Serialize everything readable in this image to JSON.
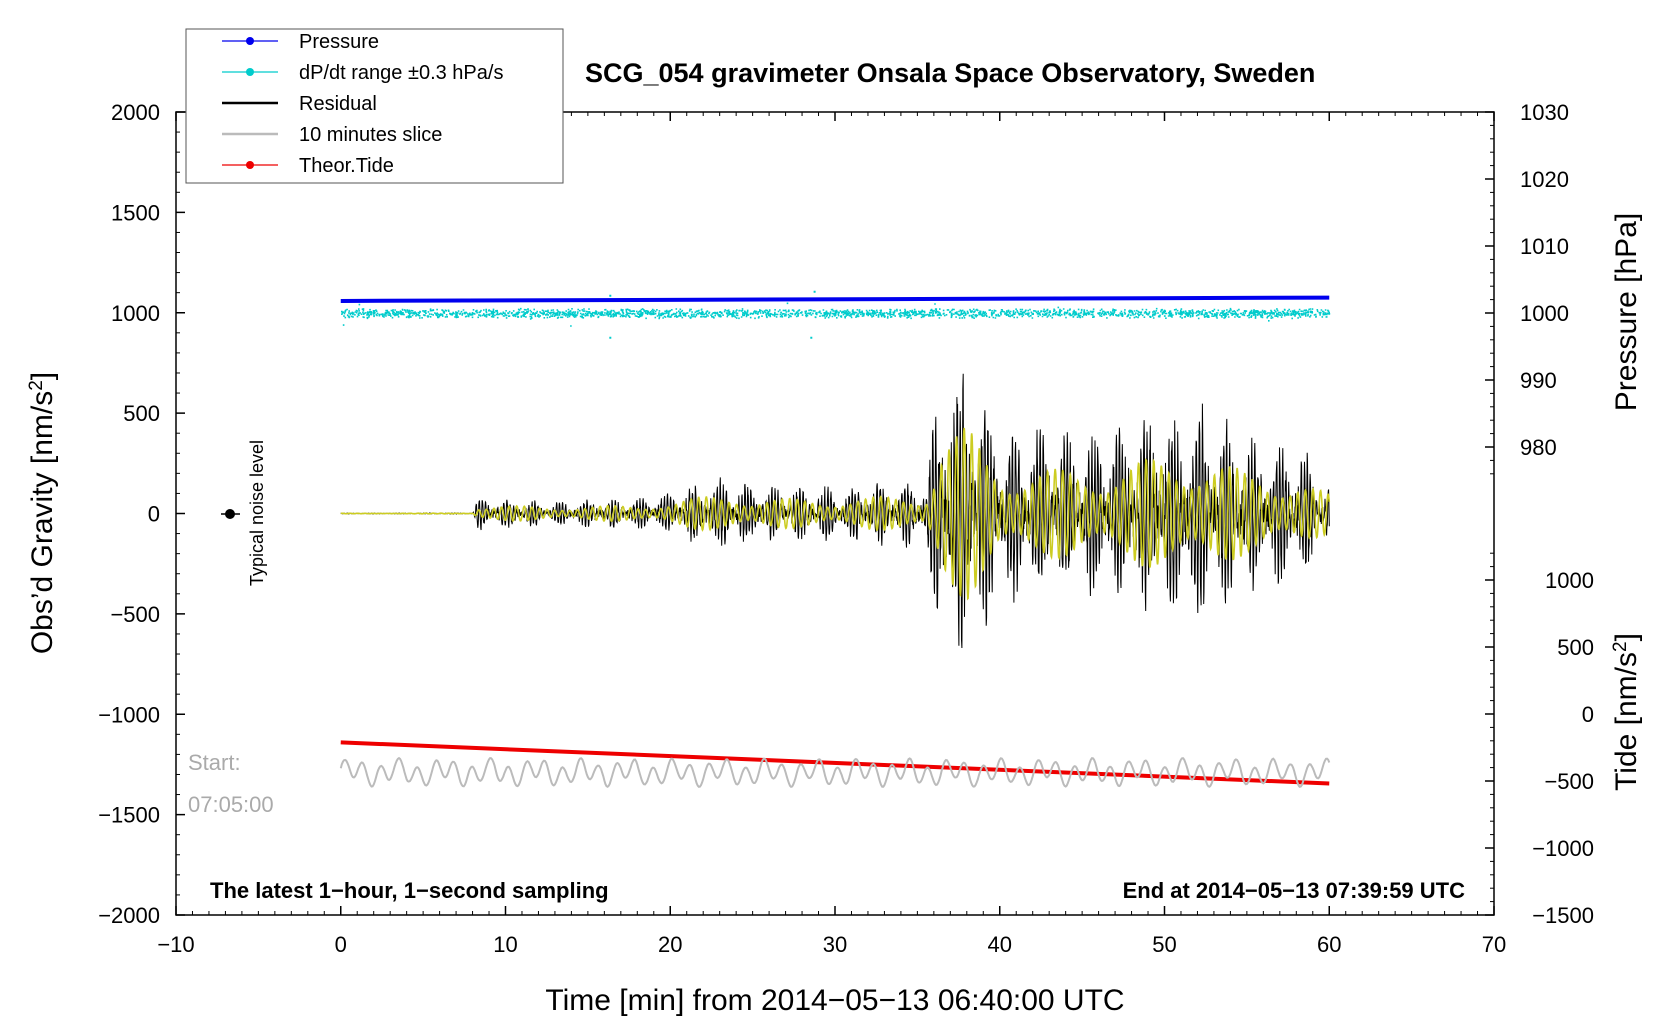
{
  "chart_data": {
    "type": "line",
    "title": "SCG_054 gravimeter Onsala Space Observatory, Sweden",
    "xlabel": "Time [min] from 2014−05−13 06:40:00 UTC",
    "ylabel": "Obs’d Gravity [nm/s²]",
    "ylabel_pressure": "Pressure [hPa]",
    "ylabel_tide": "Tide [nm/s²]",
    "xlim": [
      -10,
      70
    ],
    "ylim": [
      -2000,
      2000
    ],
    "pressure_lim": [
      970,
      1030
    ],
    "tide_lim": [
      -1500,
      1500
    ],
    "x_ticks": [
      -10,
      0,
      10,
      20,
      30,
      40,
      50,
      60,
      70
    ],
    "x_tick_labels": [
      "−10",
      "0",
      "10",
      "20",
      "30",
      "40",
      "50",
      "60",
      "70"
    ],
    "y_ticks": [
      -2000,
      -1500,
      -1000,
      -500,
      0,
      500,
      1000,
      1500,
      2000
    ],
    "y_tick_labels": [
      "−2000",
      "−1500",
      "−1000",
      "−500",
      "0",
      "500",
      "1000",
      "1500",
      "2000"
    ],
    "pressure_ticks": [
      980,
      990,
      1000,
      1010,
      1020,
      1030
    ],
    "pressure_tick_labels": [
      "980",
      "990",
      "1000",
      "1010",
      "1020",
      "1030"
    ],
    "tide_ticks": [
      -1500,
      -1000,
      -500,
      0,
      500,
      1000
    ],
    "tide_tick_labels": [
      "−1500",
      "−1000",
      "−500",
      "0",
      "500",
      "1000"
    ],
    "legend": {
      "position": "top-left",
      "entries": [
        {
          "label": "Pressure",
          "color": "#0000ee",
          "marker": true
        },
        {
          "label": "dP/dt range ±0.3 hPa/s",
          "color": "#00cccc",
          "marker": true
        },
        {
          "label": "Residual",
          "color": "#000000",
          "marker": false
        },
        {
          "label": "10 minutes slice",
          "color": "#bbbbbb",
          "marker": false
        },
        {
          "label": "Theor.Tide",
          "color": "#ee0000",
          "marker": true
        }
      ]
    },
    "series": [
      {
        "name": "Pressure",
        "axis": "pressure",
        "color": "#0000ee",
        "x": [
          0,
          60
        ],
        "values": [
          1001.8,
          1002.3
        ]
      },
      {
        "name": "dP/dt range ±0.3 hPa/s",
        "axis": "gravity",
        "color": "#00cccc",
        "x": [
          0,
          60
        ],
        "values": [
          1000,
          1000
        ],
        "spread": 25
      },
      {
        "name": "Theor.Tide",
        "axis": "gravity",
        "color": "#ee0000",
        "x": [
          0,
          60
        ],
        "values": [
          -1140,
          -1345
        ]
      }
    ],
    "residual_envelope": {
      "x": [
        0,
        8,
        8.3,
        12,
        18,
        20,
        24,
        25,
        30,
        35.5,
        36.5,
        38,
        40,
        45,
        48,
        50,
        52,
        55,
        58,
        60
      ],
      "amplitude": [
        2,
        3,
        70,
        55,
        65,
        100,
        170,
        120,
        120,
        150,
        650,
        700,
        380,
        350,
        420,
        450,
        500,
        330,
        300,
        150
      ],
      "filtered_color": "#cccc22"
    },
    "slice": {
      "x_range": [
        0,
        60
      ],
      "center": -1290,
      "amplitude": 60
    },
    "annotations": {
      "noise_label": "Typical noise level",
      "start_label": "Start:",
      "start_time": "07:05:00",
      "sampling_note": "The latest 1−hour, 1−second sampling",
      "end_note": "End at 2014−05−13 07:39:59 UTC"
    }
  }
}
